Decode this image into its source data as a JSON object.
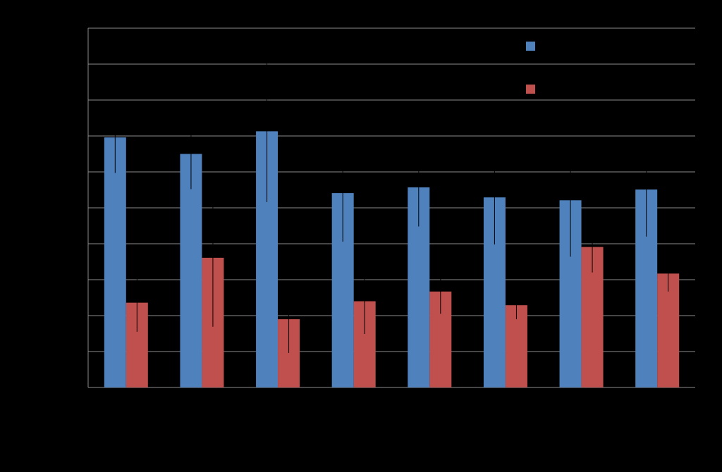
{
  "chart_data": {
    "type": "bar",
    "title": "",
    "xlabel": "",
    "ylabel": "",
    "categories": [
      "",
      "",
      "",
      "",
      "",
      "",
      "",
      ""
    ],
    "ylim": [
      0,
      100
    ],
    "y_tick_step": 10,
    "grid": true,
    "legend_position": "top-right",
    "series": [
      {
        "color": "#4F81BD",
        "values": [
          69.6,
          65.0,
          71.3,
          54.1,
          55.7,
          52.9,
          52.1,
          55.1
        ],
        "errors": [
          9.9,
          9.8,
          19.7,
          13.5,
          10.9,
          13.1,
          15.7,
          13.1
        ]
      },
      {
        "color": "#C0504D",
        "values": [
          23.6,
          36.1,
          19.0,
          24.0,
          26.7,
          22.9,
          39.1,
          31.7
        ],
        "errors": [
          8.1,
          19.2,
          9.4,
          9.1,
          6.2,
          3.9,
          7.1,
          5.0
        ]
      }
    ]
  }
}
